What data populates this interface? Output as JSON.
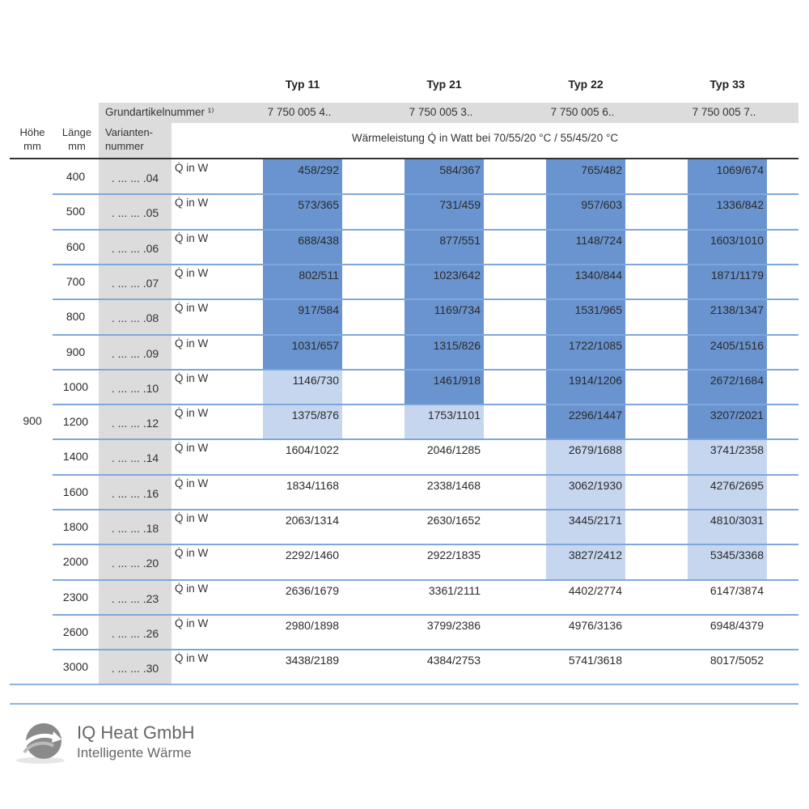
{
  "types": [
    {
      "name": "Typ 11",
      "article": "7 750 005 4.."
    },
    {
      "name": "Typ 21",
      "article": "7 750 005 3.."
    },
    {
      "name": "Typ 22",
      "article": "7 750 005 6.."
    },
    {
      "name": "Typ 33",
      "article": "7 750 005 7.."
    }
  ],
  "header": {
    "grundartikel": "Grundartikelnummer ¹⁾",
    "hoehe": "Höhe",
    "hoehe_unit": "mm",
    "laenge": "Länge",
    "laenge_unit": "mm",
    "variante": "Varianten-",
    "variante2": "nummer",
    "waermeleistung": "Wärmeleistung Q̇ in Watt bei 70/55/20 °C / 55/45/20 °C"
  },
  "height_value": "900",
  "q_label": "Q̇ in W",
  "shading_colors": {
    "dark": "#6a94cf",
    "light": "#c6d6ef"
  },
  "rows": [
    {
      "length": "400",
      "variant": ". ... ... .04",
      "values": [
        "458/292",
        "584/367",
        "765/482",
        "1069/674"
      ],
      "shade": [
        "dark",
        "dark",
        "dark",
        "dark"
      ]
    },
    {
      "length": "500",
      "variant": ". ... ... .05",
      "values": [
        "573/365",
        "731/459",
        "957/603",
        "1336/842"
      ],
      "shade": [
        "dark",
        "dark",
        "dark",
        "dark"
      ]
    },
    {
      "length": "600",
      "variant": ". ... ... .06",
      "values": [
        "688/438",
        "877/551",
        "1148/724",
        "1603/1010"
      ],
      "shade": [
        "dark",
        "dark",
        "dark",
        "dark"
      ]
    },
    {
      "length": "700",
      "variant": ". ... ... .07",
      "values": [
        "802/511",
        "1023/642",
        "1340/844",
        "1871/1179"
      ],
      "shade": [
        "dark",
        "dark",
        "dark",
        "dark"
      ]
    },
    {
      "length": "800",
      "variant": ". ... ... .08",
      "values": [
        "917/584",
        "1169/734",
        "1531/965",
        "2138/1347"
      ],
      "shade": [
        "dark",
        "dark",
        "dark",
        "dark"
      ]
    },
    {
      "length": "900",
      "variant": ". ... ... .09",
      "values": [
        "1031/657",
        "1315/826",
        "1722/1085",
        "2405/1516"
      ],
      "shade": [
        "dark",
        "dark",
        "dark",
        "dark"
      ]
    },
    {
      "length": "1000",
      "variant": ". ... ... .10",
      "values": [
        "1146/730",
        "1461/918",
        "1914/1206",
        "2672/1684"
      ],
      "shade": [
        "light",
        "dark",
        "dark",
        "dark"
      ]
    },
    {
      "length": "1200",
      "variant": ". ... ... .12",
      "values": [
        "1375/876",
        "1753/1101",
        "2296/1447",
        "3207/2021"
      ],
      "shade": [
        "light",
        "light",
        "dark",
        "dark"
      ]
    },
    {
      "length": "1400",
      "variant": ". ... ... .14",
      "values": [
        "1604/1022",
        "2046/1285",
        "2679/1688",
        "3741/2358"
      ],
      "shade": [
        "none",
        "none",
        "light",
        "light"
      ]
    },
    {
      "length": "1600",
      "variant": ". ... ... .16",
      "values": [
        "1834/1168",
        "2338/1468",
        "3062/1930",
        "4276/2695"
      ],
      "shade": [
        "none",
        "none",
        "light",
        "light"
      ]
    },
    {
      "length": "1800",
      "variant": ". ... ... .18",
      "values": [
        "2063/1314",
        "2630/1652",
        "3445/2171",
        "4810/3031"
      ],
      "shade": [
        "none",
        "none",
        "light",
        "light"
      ]
    },
    {
      "length": "2000",
      "variant": ". ... ... .20",
      "values": [
        "2292/1460",
        "2922/1835",
        "3827/2412",
        "5345/3368"
      ],
      "shade": [
        "none",
        "none",
        "light",
        "light"
      ]
    },
    {
      "length": "2300",
      "variant": ". ... ... .23",
      "values": [
        "2636/1679",
        "3361/2111",
        "4402/2774",
        "6147/3874"
      ],
      "shade": [
        "none",
        "none",
        "none",
        "none"
      ]
    },
    {
      "length": "2600",
      "variant": ". ... ... .26",
      "values": [
        "2980/1898",
        "3799/2386",
        "4976/3136",
        "6948/4379"
      ],
      "shade": [
        "none",
        "none",
        "none",
        "none"
      ]
    },
    {
      "length": "3000",
      "variant": ". ... ... .30",
      "values": [
        "3438/2189",
        "4384/2753",
        "5741/3618",
        "8017/5052"
      ],
      "shade": [
        "none",
        "none",
        "none",
        "none"
      ]
    }
  ],
  "logo": {
    "company": "IQ Heat GmbH",
    "tagline": "Intelligente Wärme"
  }
}
